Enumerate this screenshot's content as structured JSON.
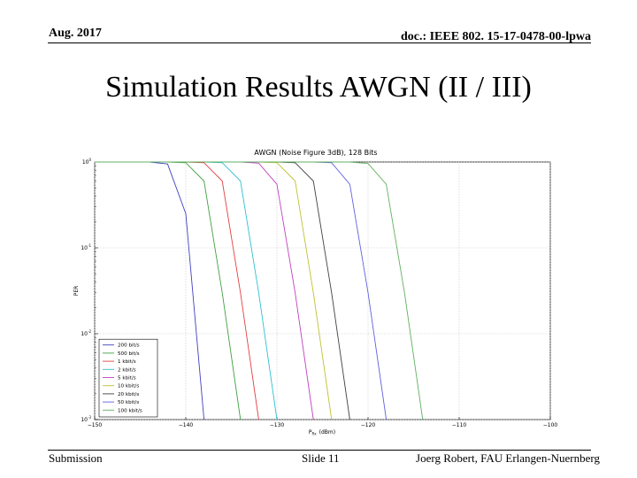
{
  "header": {
    "date": "Aug. 2017",
    "doc": "doc.: IEEE 802. 15-17-0478-00-lpwa"
  },
  "slide_title": "Simulation Results AWGN (II / III)",
  "footer": {
    "left": "Submission",
    "center": "Slide 11",
    "right": "Joerg Robert, FAU Erlangen-Nuernberg"
  },
  "colors": {
    "series": [
      "#4040c0",
      "#40a040",
      "#e04040",
      "#30c0d0",
      "#c040c0",
      "#c0c030",
      "#404040",
      "#6060e0",
      "#60b060"
    ]
  },
  "chart_data": {
    "type": "line",
    "title": "AWGN (Noise Figure 3dB), 128 Bits",
    "xlabel": "P_Rx (dBm)",
    "xlabel_main": "P",
    "xlabel_sub": "Rx",
    "xlabel_unit": "(dBm)",
    "ylabel": "PER",
    "xlim": [
      -150,
      -100
    ],
    "ylim": [
      0.001,
      1
    ],
    "yscale": "log",
    "grid": true,
    "legend_position": "lower-left",
    "x_ticks": [
      "−150",
      "−140",
      "−130",
      "−120",
      "−110",
      "−100"
    ],
    "y_ticks": [
      {
        "value": 1,
        "base": "10",
        "exp": "0"
      },
      {
        "value": 0.1,
        "base": "10",
        "exp": "-1"
      },
      {
        "value": 0.01,
        "base": "10",
        "exp": "-2"
      },
      {
        "value": 0.001,
        "base": "10",
        "exp": "-3"
      }
    ],
    "x": [
      -150,
      -148,
      -146,
      -144,
      -142,
      -140,
      -138,
      -136,
      -134,
      -132,
      -130,
      -128,
      -126,
      -124,
      -122,
      -120,
      -118,
      -116,
      -114,
      -112,
      -110,
      -108,
      -106,
      -104,
      -102,
      -100
    ],
    "series": [
      {
        "name": "200 bit/s",
        "values": [
          1,
          1,
          1,
          1,
          0.95,
          0.25,
          0.001,
          null,
          null,
          null,
          null,
          null,
          null,
          null,
          null,
          null,
          null,
          null,
          null,
          null,
          null,
          null,
          null,
          null,
          null,
          null
        ]
      },
      {
        "name": "500 bit/s",
        "values": [
          1,
          1,
          1,
          1,
          1,
          0.98,
          0.6,
          0.03,
          0.001,
          null,
          null,
          null,
          null,
          null,
          null,
          null,
          null,
          null,
          null,
          null,
          null,
          null,
          null,
          null,
          null,
          null
        ]
      },
      {
        "name": "1 kbit/s",
        "values": [
          1,
          1,
          1,
          1,
          1,
          1,
          0.98,
          0.6,
          0.03,
          0.001,
          null,
          null,
          null,
          null,
          null,
          null,
          null,
          null,
          null,
          null,
          null,
          null,
          null,
          null,
          null,
          null
        ]
      },
      {
        "name": "2 kbit/s",
        "values": [
          1,
          1,
          1,
          1,
          1,
          1,
          1,
          0.98,
          0.6,
          0.03,
          0.001,
          null,
          null,
          null,
          null,
          null,
          null,
          null,
          null,
          null,
          null,
          null,
          null,
          null,
          null,
          null
        ]
      },
      {
        "name": "5 kbit/s",
        "values": [
          1,
          1,
          1,
          1,
          1,
          1,
          1,
          1,
          1,
          0.97,
          0.55,
          0.03,
          0.001,
          null,
          null,
          null,
          null,
          null,
          null,
          null,
          null,
          null,
          null,
          null,
          null,
          null
        ]
      },
      {
        "name": "10 kbit/s",
        "values": [
          1,
          1,
          1,
          1,
          1,
          1,
          1,
          1,
          1,
          1,
          0.98,
          0.6,
          0.03,
          0.001,
          null,
          null,
          null,
          null,
          null,
          null,
          null,
          null,
          null,
          null,
          null,
          null
        ]
      },
      {
        "name": "20 kbit/s",
        "values": [
          1,
          1,
          1,
          1,
          1,
          1,
          1,
          1,
          1,
          1,
          1,
          0.98,
          0.6,
          0.03,
          0.001,
          null,
          null,
          null,
          null,
          null,
          null,
          null,
          null,
          null,
          null,
          null
        ]
      },
      {
        "name": "50 kbit/s",
        "values": [
          1,
          1,
          1,
          1,
          1,
          1,
          1,
          1,
          1,
          1,
          1,
          1,
          1,
          0.98,
          0.55,
          0.03,
          0.001,
          null,
          null,
          null,
          null,
          null,
          null,
          null,
          null,
          null
        ]
      },
      {
        "name": "100 kbit/s",
        "values": [
          1,
          1,
          1,
          1,
          1,
          1,
          1,
          1,
          1,
          1,
          1,
          1,
          1,
          1,
          1,
          0.96,
          0.55,
          0.03,
          0.001,
          null,
          null,
          null,
          null,
          null,
          null,
          null
        ]
      }
    ]
  }
}
